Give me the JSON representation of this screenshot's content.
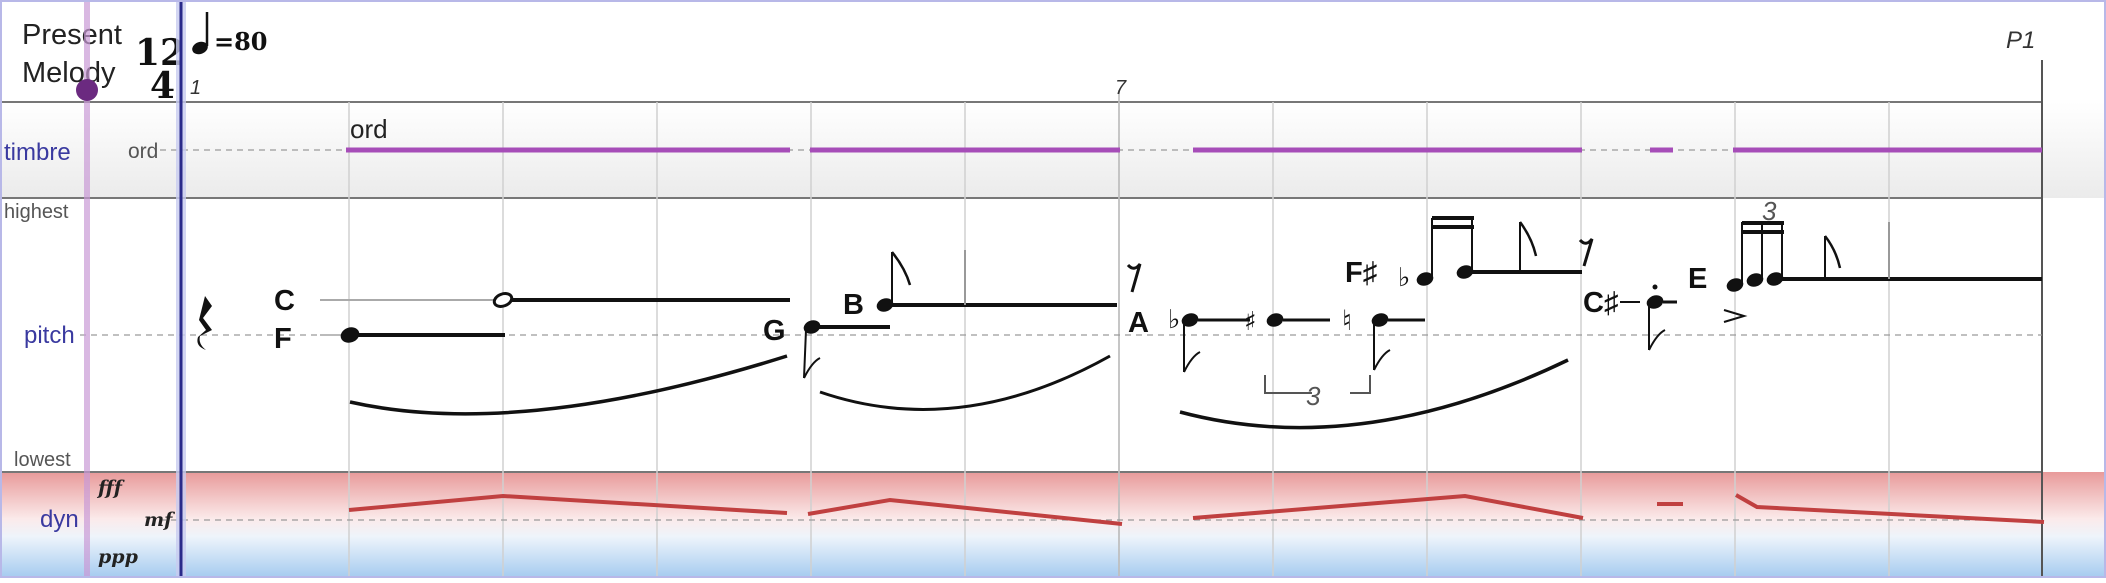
{
  "header": {
    "title_line1": "Present",
    "title_line2": "Melody",
    "time_sig_top": "12",
    "time_sig_bottom": "4",
    "tempo": "=80",
    "bar_1": "1",
    "bar_7": "7",
    "page_marker": "P1"
  },
  "tracks": {
    "timbre": {
      "label": "timbre",
      "value_label": "ord",
      "marking": "ord"
    },
    "pitch": {
      "label": "pitch",
      "top_label": "highest",
      "bottom_label": "lowest"
    },
    "dyn": {
      "label": "dyn",
      "levels": [
        "fff",
        "mf",
        "ppp"
      ]
    }
  },
  "pitch_letters": {
    "c": "C",
    "f": "F",
    "g": "G",
    "b": "B",
    "a": "A",
    "f_sharp": "F♯",
    "c_sharp": "C♯",
    "e": "E"
  },
  "tuplets": {
    "triplet_low": "3",
    "triplet_high": "3"
  },
  "colors": {
    "accent_blue": "#3a3aa0",
    "timbre_line": "#a64db8",
    "dyn_line": "#c04040",
    "playhead": "#6b2a80"
  }
}
